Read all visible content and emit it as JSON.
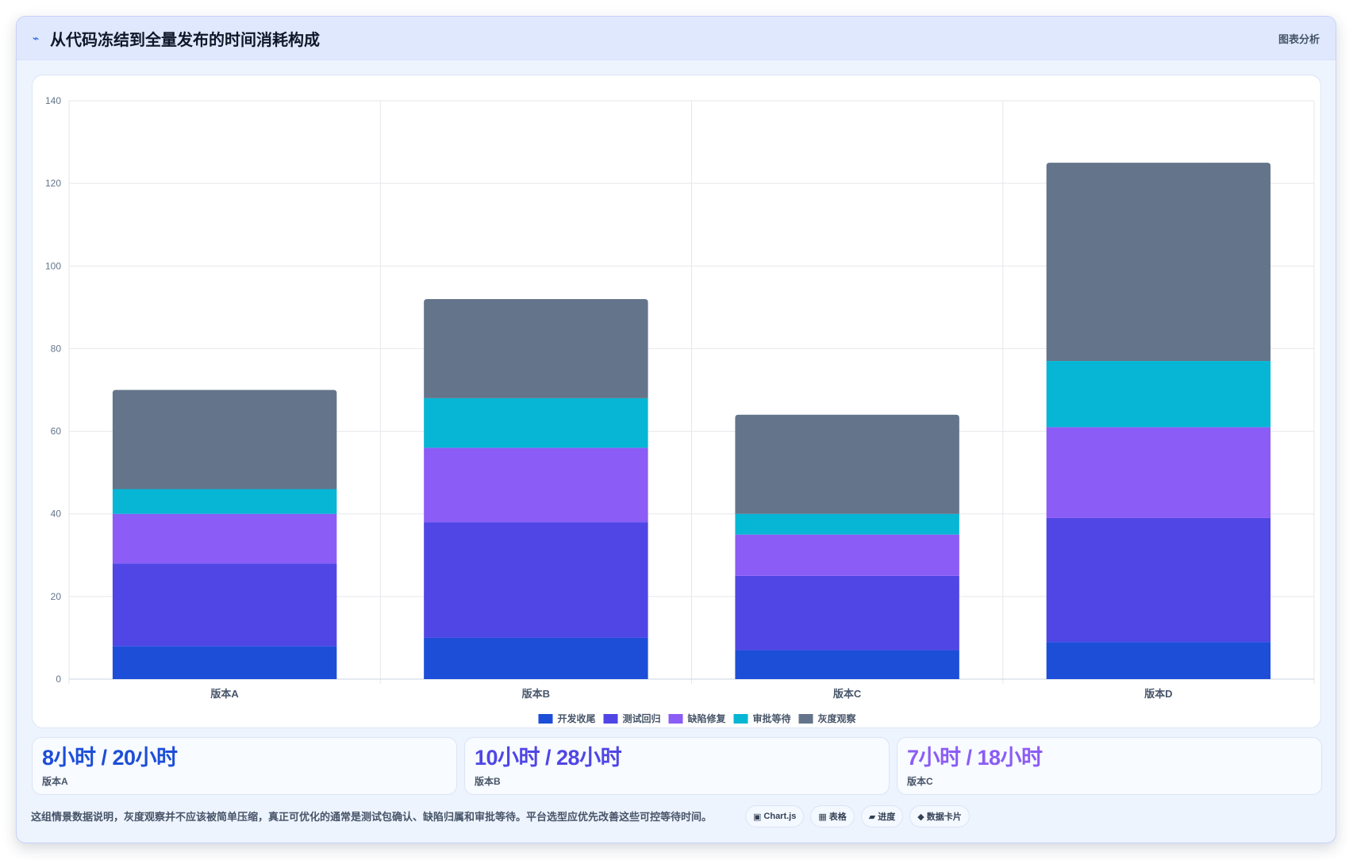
{
  "header": {
    "icon": "pulse-icon",
    "icon_glyph": "⌁",
    "title": "从代码冻结到全量发布的时间消耗构成",
    "right_label": "图表分析"
  },
  "chart_data": {
    "type": "bar",
    "stacked": true,
    "categories": [
      "版本A",
      "版本B",
      "版本C",
      "版本D"
    ],
    "series": [
      {
        "name": "开发收尾",
        "color": "#1d4ed8",
        "values": [
          8,
          10,
          7,
          9
        ]
      },
      {
        "name": "测试回归",
        "color": "#4f46e5",
        "values": [
          20,
          28,
          18,
          30
        ]
      },
      {
        "name": "缺陷修复",
        "color": "#8b5cf6",
        "values": [
          12,
          18,
          10,
          22
        ]
      },
      {
        "name": "审批等待",
        "color": "#06b6d4",
        "values": [
          6,
          12,
          5,
          16
        ]
      },
      {
        "name": "灰度观察",
        "color": "#64748b",
        "values": [
          24,
          24,
          24,
          48
        ]
      }
    ],
    "ylim": [
      0,
      140
    ],
    "yticks": [
      0,
      20,
      40,
      60,
      80,
      100,
      120,
      140
    ],
    "grid": true,
    "legend_position": "bottom"
  },
  "stats": [
    {
      "value": "8小时 / 20小时",
      "label": "版本A",
      "color": "#1d4ed8"
    },
    {
      "value": "10小时 / 28小时",
      "label": "版本B",
      "color": "#4f46e5"
    },
    {
      "value": "7小时 / 18小时",
      "label": "版本C",
      "color": "#8b5cf6"
    }
  ],
  "footer": {
    "note": "这组情景数据说明，灰度观察并不应该被简单压缩，真正可优化的通常是测试包确认、缺陷归属和审批等待。平台选型应优先改善这些可控等待时间。",
    "tags": [
      {
        "icon": "chart-icon",
        "glyph": "▣",
        "label": "Chart.js"
      },
      {
        "icon": "table-icon",
        "glyph": "▦",
        "label": "表格"
      },
      {
        "icon": "progress-icon",
        "glyph": "▰",
        "label": "进度"
      },
      {
        "icon": "card-icon",
        "glyph": "◆",
        "label": "数据卡片"
      }
    ]
  }
}
